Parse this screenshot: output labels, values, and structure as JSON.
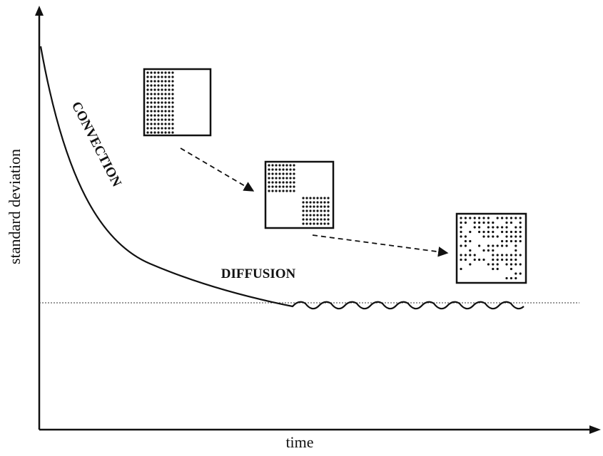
{
  "axes": {
    "x_label": "time",
    "y_label": "standard deviation"
  },
  "annotations": {
    "convection": "CONVECTION",
    "diffusion": "DIFFUSION"
  }
}
